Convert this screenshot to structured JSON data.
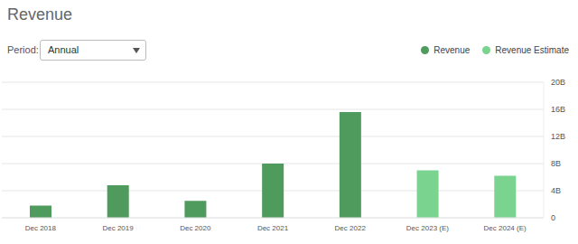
{
  "chart_data": {
    "type": "bar",
    "title": "Revenue",
    "categories": [
      "Dec 2018",
      "Dec 2019",
      "Dec 2020",
      "Dec 2021",
      "Dec 2022",
      "Dec 2023 (E)",
      "Dec 2024 (E)"
    ],
    "series": [
      {
        "name": "Revenue",
        "color": "#4f9a5d",
        "values": [
          1.8,
          4.8,
          2.5,
          8.0,
          15.6,
          null,
          null
        ]
      },
      {
        "name": "Revenue Estimate",
        "color": "#7ad48f",
        "values": [
          null,
          null,
          null,
          null,
          null,
          7.0,
          6.2
        ]
      }
    ],
    "stacked": true,
    "grid": true,
    "legend": "upper right",
    "ylim": [
      0,
      20
    ],
    "yticks": [
      0,
      {
        "value": 4,
        "label": "4B"
      },
      {
        "value": 8,
        "label": "8B"
      },
      {
        "value": 12,
        "label": "12B"
      },
      {
        "value": 16,
        "label": "16B"
      },
      {
        "value": 20,
        "label": "20B"
      }
    ]
  },
  "controls": {
    "label": "Period:",
    "value": "Annual"
  }
}
